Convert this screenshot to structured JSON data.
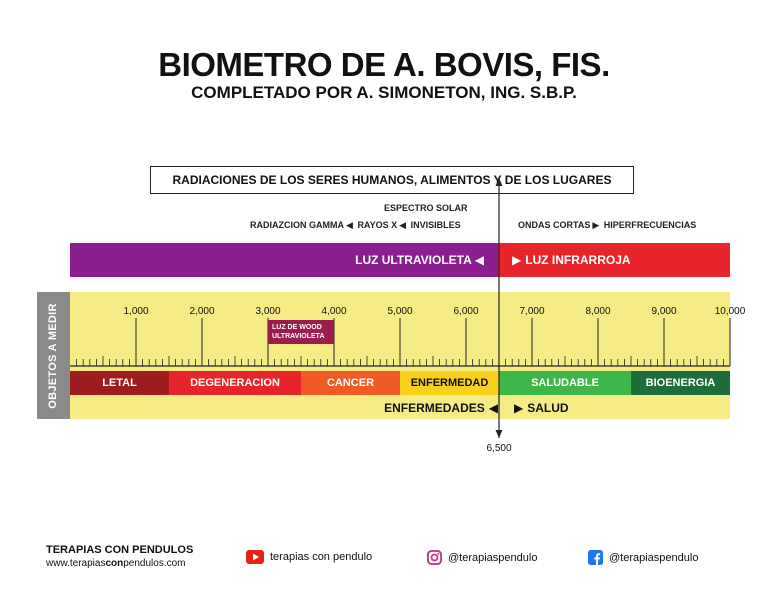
{
  "header": {
    "title": "BIOMETRO DE A. BOVIS, FIS.",
    "subtitle": "COMPLETADO POR A. SIMONETON, ING. S.B.P."
  },
  "radiation_box": "RADIACIONES DE LOS SERES HUMANOS, ALIMENTOS Y DE LOS LUGARES",
  "spectrum": {
    "solar_label": "ESPECTRO SOLAR",
    "left_gamma": "RADIAZCION GAMMA",
    "left_xray": "RAYOS X",
    "left_invisible": "INVISIBLES",
    "right_short": "ONDAS CORTAS",
    "right_hyper": "HIPERFRECUENCIAS",
    "uv_label": "LUZ ULTRAVIOLETA",
    "ir_label": "LUZ INFRARROJA"
  },
  "side_label": "OBJETOS A MEDIR",
  "scale": {
    "min": 0,
    "max": 10000,
    "divider": 6500,
    "divider_label": "6,500",
    "ticks": [
      {
        "value": 1000,
        "label": "1,000"
      },
      {
        "value": 2000,
        "label": "2,000"
      },
      {
        "value": 3000,
        "label": "3,000"
      },
      {
        "value": 4000,
        "label": "4,000"
      },
      {
        "value": 5000,
        "label": "5,000"
      },
      {
        "value": 6000,
        "label": "6,000"
      },
      {
        "value": 7000,
        "label": "7,000"
      },
      {
        "value": 8000,
        "label": "8,000"
      },
      {
        "value": 9000,
        "label": "9,000"
      },
      {
        "value": 10000,
        "label": "10,000"
      }
    ]
  },
  "wood_label": {
    "line1": "LUZ DE WOOD",
    "line2": "ULTRAVIOLETA"
  },
  "segments": [
    {
      "label": "LETAL",
      "from": 0,
      "to": 1500,
      "color": "#9e1b1e"
    },
    {
      "label": "DEGENERACION",
      "from": 1500,
      "to": 3500,
      "color": "#e8242b"
    },
    {
      "label": "CANCER",
      "from": 3500,
      "to": 5000,
      "color": "#f15a24"
    },
    {
      "label": "ENFERMEDAD",
      "from": 5000,
      "to": 6500,
      "color": "#f9d11b"
    },
    {
      "label": "SALUDABLE",
      "from": 6500,
      "to": 8500,
      "color": "#3fb649"
    },
    {
      "label": "BIOENERGIA",
      "from": 8500,
      "to": 10000,
      "color": "#1d6e3a"
    }
  ],
  "bottom": {
    "left": "ENFERMEDADES",
    "right": "SALUD"
  },
  "footer": {
    "brand": "TERAPIAS CON PENDULOS",
    "site_pre": "www.terapias",
    "site_mid": "con",
    "site_post": "pendulos.com",
    "youtube": "terapias con pendulo",
    "instagram": "@terapiaspendulo",
    "facebook": "@terapiaspendulo"
  },
  "colors": {
    "uv": "#8b1e8f",
    "ir": "#e8242b",
    "scale_bg": "#f6ec86",
    "side_bg": "#8a8a8a"
  }
}
